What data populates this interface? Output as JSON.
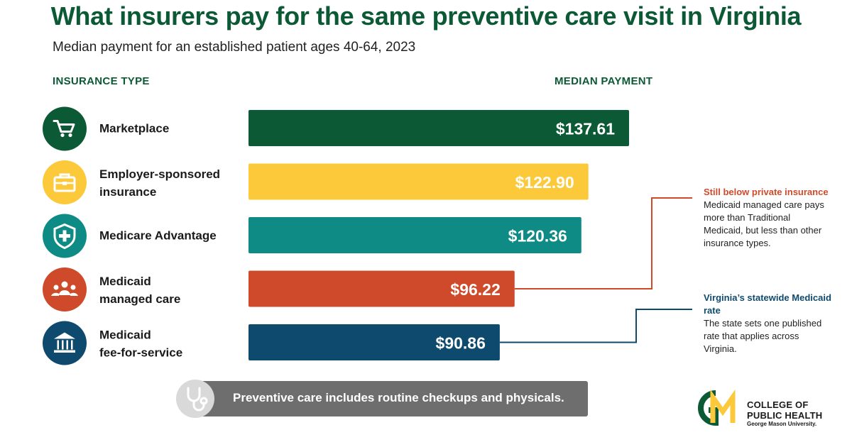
{
  "title": "What insurers pay for the same preventive care visit in Virginia",
  "subtitle": "Median payment for an established patient ages 40-64, 2023",
  "col_left": "INSURANCE TYPE",
  "col_right": "MEDIAN PAYMENT",
  "chart_data": {
    "type": "bar",
    "orientation": "horizontal",
    "categories": [
      {
        "line1": "Marketplace",
        "line2": "",
        "icon": "shopping-cart-icon",
        "color": "#0b5a35",
        "label_color": "#ffffff"
      },
      {
        "line1": "Employer-sponsored",
        "line2": "insurance",
        "icon": "briefcase-icon",
        "color": "#fcc93a",
        "label_color": "#ffffff"
      },
      {
        "line1": "Medicare Advantage",
        "line2": "",
        "icon": "shield-plus-icon",
        "color": "#0f8b86",
        "label_color": "#ffffff"
      },
      {
        "line1": "Medicaid",
        "line2": "managed care",
        "icon": "people-group-icon",
        "color": "#cf4a2a",
        "label_color": "#ffffff"
      },
      {
        "line1": "Medicaid",
        "line2": "fee-for-service",
        "icon": "government-building-icon",
        "color": "#0e4a6e",
        "label_color": "#ffffff"
      }
    ],
    "values": [
      137.61,
      122.9,
      120.36,
      96.22,
      90.86
    ],
    "value_labels": [
      "$137.61",
      "$122.90",
      "$120.36",
      "$96.22",
      "$90.86"
    ],
    "xlim": [
      0,
      137.61
    ],
    "grid": false,
    "annotations": [
      {
        "target": 3,
        "heading": "Still below private insurance",
        "body": "Medicaid managed care pays more than Traditional Medicaid, but less than other insurance types.",
        "color": "#cf4a2a"
      },
      {
        "target": 4,
        "heading": "Virginia’s statewide Medicaid rate",
        "body": "The state sets one published rate that applies across Virginia.",
        "color": "#0e4a6e"
      }
    ]
  },
  "footer": {
    "text": "Preventive care includes routine checkups and physicals.",
    "icon": "stethoscope-icon"
  },
  "logo": {
    "line1": "COLLEGE OF",
    "line2": "PUBLIC HEALTH",
    "line3": "George Mason University.",
    "mark": "gm-logo-icon"
  }
}
